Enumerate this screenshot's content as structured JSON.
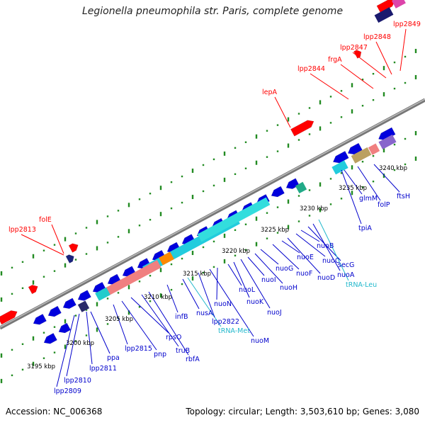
{
  "title": "Legionella pneumophila str. Paris, complete genome",
  "footer": {
    "accession": "Accession: NC_006368",
    "summary": "Topology: circular; Length: 3,503,610 bp; Genes: 3,080"
  },
  "scale_labels": [
    "3195 kbp",
    "3200 kbp",
    "3205 kbp",
    "3210 kbp",
    "3215 kbp",
    "3220 kbp",
    "3225 kbp",
    "3230 kbp",
    "3235 kbp",
    "3240 kbp"
  ],
  "forward_labels": [
    "lpp2813",
    "folE",
    "lepA",
    "lpp2844",
    "frgA",
    "lpp2847",
    "lpp2848",
    "lpp2849"
  ],
  "reverse_labels": [
    "lpp2809",
    "lpp2810",
    "lpp2811",
    "ppa",
    "lpp2815",
    "pnp",
    "rpsO",
    "truB",
    "rbfA",
    "infB",
    "nusA",
    "tRNA-Met",
    "lpp2822",
    "nuoM",
    "nuoN",
    "nuoL",
    "nuoK",
    "nuoJ",
    "nuoI",
    "nuoH",
    "nuoG",
    "nuoF",
    "nuoE",
    "nuoD",
    "nuoC",
    "nuoB",
    "secG",
    "nuoA",
    "tRNA-Leu",
    "tpiA",
    "glmM",
    "folP",
    "ftsH"
  ],
  "colors": {
    "forward": "#ff0000",
    "reverse": "#0000dd",
    "rna": "#22ccdd",
    "backbone": "#888888",
    "ticks": "#228b22"
  }
}
